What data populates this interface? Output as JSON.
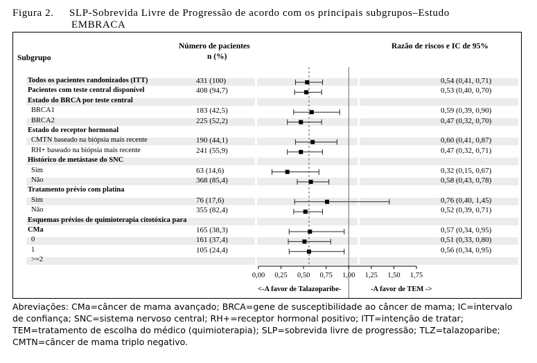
{
  "figure": {
    "label": "Figura 2.",
    "title_line1": "SLP-Sobrevida Livre de Progressão de acordo com os principais subgrupos–Estudo",
    "title_line2": "EMBRACA"
  },
  "header": {
    "subgroup": "Subgrupo",
    "n_line1": "Número de pacientes",
    "n_line2": "n (%)",
    "hr": "Razão de riscos e IC de 95%"
  },
  "chart_data": {
    "type": "forest",
    "reference_line": 0.56,
    "null_line": 1.0,
    "xlim": [
      0,
      1.75
    ],
    "x_ticks": [
      "0,00",
      "0,25",
      "0,50",
      "0,75",
      "1,00",
      "1,25",
      "1,50",
      "1,75"
    ],
    "x_tick_values": [
      0,
      0.25,
      0.5,
      0.75,
      1.0,
      1.25,
      1.5,
      1.75
    ],
    "favor_left": "<-A favor de Talazoparibe-",
    "favor_right": "-A favor de TEM ->",
    "rows": [
      {
        "label": "Todos os pacientes randonizados (ITT)",
        "bold": true,
        "n": "431 (100)",
        "ci": "0,54 (0,41, 0,71)",
        "hr": 0.54,
        "lo": 0.41,
        "hi": 0.71
      },
      {
        "label": "Pacientes com teste central disponível",
        "bold": true,
        "n": "408 (94,7)",
        "ci": "0,53 (0,40, 0,70)",
        "hr": 0.53,
        "lo": 0.4,
        "hi": 0.7
      },
      {
        "label": "Estado do BRCA por teste central",
        "bold": true,
        "n": "",
        "ci": ""
      },
      {
        "label": "BRCA1",
        "bold": false,
        "n": "183 (42,5)",
        "ci": "0,59 (0,39, 0,90)",
        "hr": 0.59,
        "lo": 0.39,
        "hi": 0.9
      },
      {
        "label": "BRCA2",
        "bold": false,
        "n": "225 (52,2)",
        "ci": "0,47 (0,32, 0,70)",
        "hr": 0.47,
        "lo": 0.32,
        "hi": 0.7
      },
      {
        "label": "Estado do receptor hormonal",
        "bold": true,
        "n": "",
        "ci": ""
      },
      {
        "label": "CMTN baseado na biópsia mais recente",
        "bold": false,
        "n": "190 (44,1)",
        "ci": "0,60 (0,41, 0,87)",
        "hr": 0.6,
        "lo": 0.41,
        "hi": 0.87
      },
      {
        "label": "RH+ baseado na biópsia mais recente",
        "bold": false,
        "n": "241 (55,9)",
        "ci": "0,47 (0,32, 0,71)",
        "hr": 0.47,
        "lo": 0.32,
        "hi": 0.71
      },
      {
        "label": "Histórico de metástase do SNC",
        "bold": true,
        "n": "",
        "ci": ""
      },
      {
        "label": "Sim",
        "bold": false,
        "n": "63 (14,6)",
        "ci": "0,32 (0,15, 0,67)",
        "hr": 0.32,
        "lo": 0.15,
        "hi": 0.67
      },
      {
        "label": "Não",
        "bold": false,
        "n": "368 (85,4)",
        "ci": "0,58 (0,43, 0,78)",
        "hr": 0.58,
        "lo": 0.43,
        "hi": 0.78
      },
      {
        "label": "Tratamento prévio com platina",
        "bold": true,
        "n": "",
        "ci": ""
      },
      {
        "label": "Sim",
        "bold": false,
        "n": "76 (17,6)",
        "ci": "0,76 (0,40, 1,45)",
        "hr": 0.76,
        "lo": 0.4,
        "hi": 1.45
      },
      {
        "label": "Não",
        "bold": false,
        "n": "355 (82,4)",
        "ci": "0,52 (0,39, 0,71)",
        "hr": 0.52,
        "lo": 0.39,
        "hi": 0.71
      },
      {
        "label": "Esquemas prévios de quimioterapia citotóxica para",
        "bold": true,
        "n": "",
        "ci": ""
      },
      {
        "label": "CMa",
        "bold": true,
        "n": "165 (38,3)",
        "ci": "0,57 (0,34, 0,95)",
        "hr": 0.57,
        "lo": 0.34,
        "hi": 0.95
      },
      {
        "label": "0",
        "bold": false,
        "n": "161 (37,4)",
        "ci": "0,51 (0,33, 0,80)",
        "hr": 0.51,
        "lo": 0.33,
        "hi": 0.8
      },
      {
        "label": "1",
        "bold": false,
        "n": "105 (24,4)",
        "ci": "0,56 (0,34, 0,95)",
        "hr": 0.56,
        "lo": 0.34,
        "hi": 0.95
      },
      {
        "label": ">=2",
        "bold": false,
        "n": "",
        "ci": ""
      }
    ]
  },
  "footer": {
    "text": "Abreviações: CMa=câncer de mama avançado; BRCA=gene de susceptibilidade ao câncer de mama; IC=intervalo de confiança; SNC=sistema nervoso central; RH+=receptor hormonal positivo; ITT=intenção de tratar; TEM=tratamento de escolha do médico (quimioterapia); SLP=sobrevida livre de progressão; TLZ=talazoparibe; CMTN=câncer de mama triplo negativo."
  }
}
